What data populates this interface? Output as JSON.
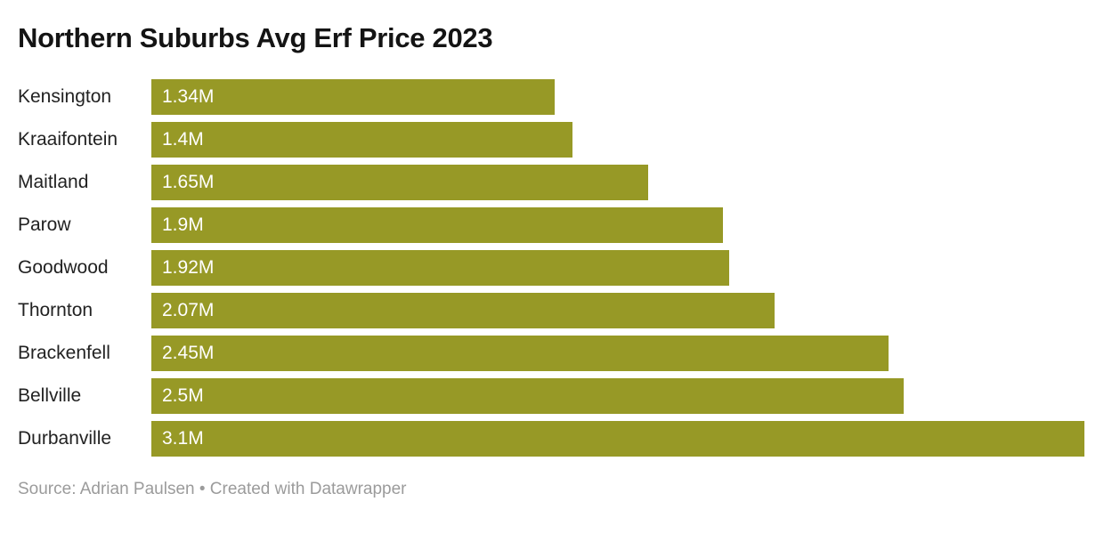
{
  "header": {
    "title": "Northern Suburbs Avg Erf Price 2023"
  },
  "footer": {
    "text": "Source: Adrian Paulsen • Created with Datawrapper"
  },
  "colors": {
    "bar": "#979926",
    "value_label": "#ffffff",
    "category_label": "#222222",
    "title": "#141414",
    "footer_text": "#9b9b9b",
    "background": "#ffffff"
  },
  "chart_data": {
    "type": "bar",
    "orientation": "horizontal",
    "title": "Northern Suburbs Avg Erf Price 2023",
    "categories": [
      "Kensington",
      "Kraaifontein",
      "Maitland",
      "Parow",
      "Goodwood",
      "Thornton",
      "Brackenfell",
      "Bellville",
      "Durbanville"
    ],
    "values": [
      1.34,
      1.4,
      1.65,
      1.9,
      1.92,
      2.07,
      2.45,
      2.5,
      3.1
    ],
    "value_labels": [
      "1.34M",
      "1.4M",
      "1.65M",
      "1.9M",
      "1.92M",
      "2.07M",
      "2.45M",
      "2.5M",
      "3.1M"
    ],
    "unit": "M",
    "xlabel": "",
    "ylabel": "",
    "xlim": [
      0,
      3.1
    ],
    "grid": false,
    "legend": false,
    "source": "Adrian Paulsen",
    "attribution": "Created with Datawrapper"
  }
}
